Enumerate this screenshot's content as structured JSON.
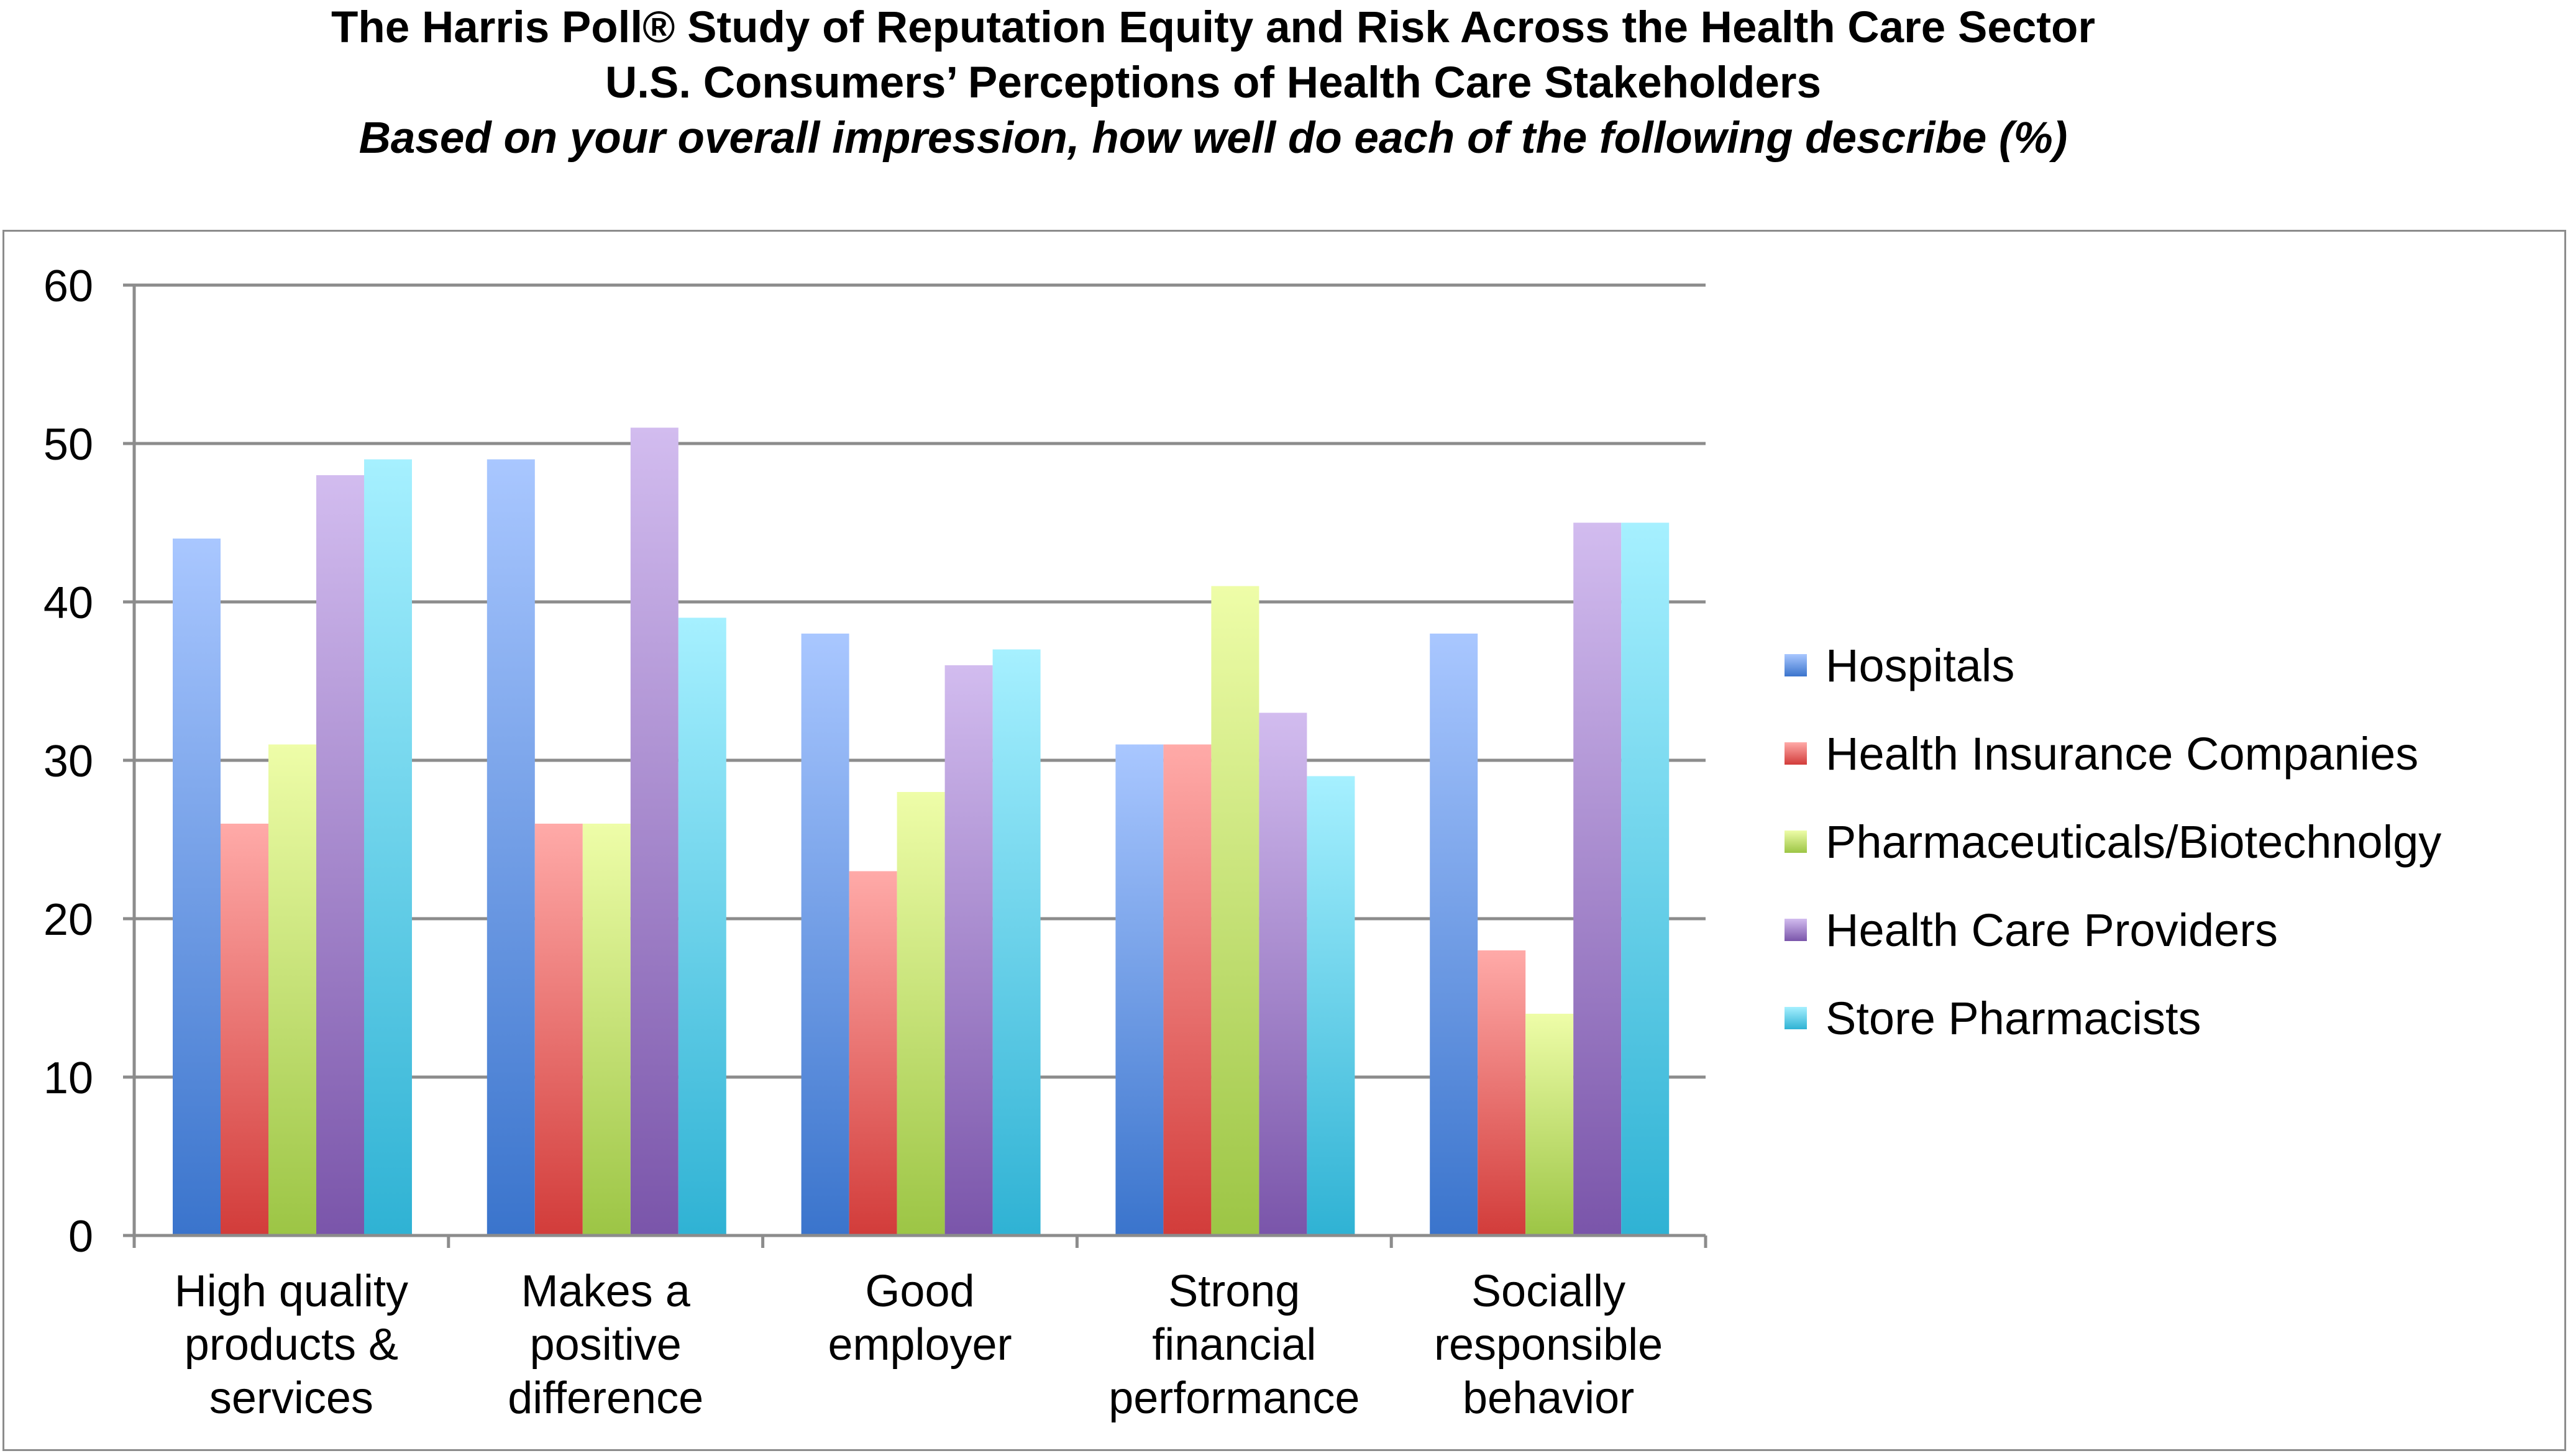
{
  "title": "The Harris Poll® Study of Reputation Equity and Risk Across the Health Care Sector",
  "subtitle": "U.S. Consumers’ Perceptions of Health Care Stakeholders",
  "question": "Based on your overall impression, how well do each of the following describe (%)",
  "chart_data": {
    "type": "bar",
    "title": "The Harris Poll® Study of Reputation Equity and Risk Across the Health Care Sector",
    "xlabel": "",
    "ylabel": "",
    "ylim": [
      0,
      60
    ],
    "yticks": [
      0,
      10,
      20,
      30,
      40,
      50,
      60
    ],
    "grid": true,
    "legend_position": "right",
    "categories": [
      [
        "High quality",
        "products &",
        "services"
      ],
      [
        "Makes a",
        "positive",
        "difference"
      ],
      [
        "Good",
        "employer"
      ],
      [
        "Strong",
        "financial",
        "performance"
      ],
      [
        "Socially",
        "responsible",
        "behavior"
      ]
    ],
    "series": [
      {
        "name": "Hospitals",
        "color": "#4f81bd",
        "light": "#a9c7ff",
        "dark": "#3a74cc",
        "values": [
          44,
          49,
          38,
          31,
          38
        ]
      },
      {
        "name": "Health Insurance Companies",
        "color": "#c0504d",
        "light": "#ffaaa8",
        "dark": "#d23c3a",
        "values": [
          26,
          26,
          23,
          31,
          18
        ]
      },
      {
        "name": "Pharmaceuticals/Biotechnolgy",
        "color": "#9bbb59",
        "light": "#eefda8",
        "dark": "#9cc545",
        "values": [
          31,
          26,
          28,
          41,
          14
        ]
      },
      {
        "name": "Health Care Providers",
        "color": "#8064a2",
        "light": "#d2bcef",
        "dark": "#7a55aa",
        "values": [
          48,
          51,
          36,
          33,
          45
        ]
      },
      {
        "name": "Store Pharmacists",
        "color": "#4bacc6",
        "light": "#a6f0ff",
        "dark": "#2fb2d4",
        "values": [
          49,
          39,
          37,
          29,
          45
        ]
      }
    ]
  }
}
